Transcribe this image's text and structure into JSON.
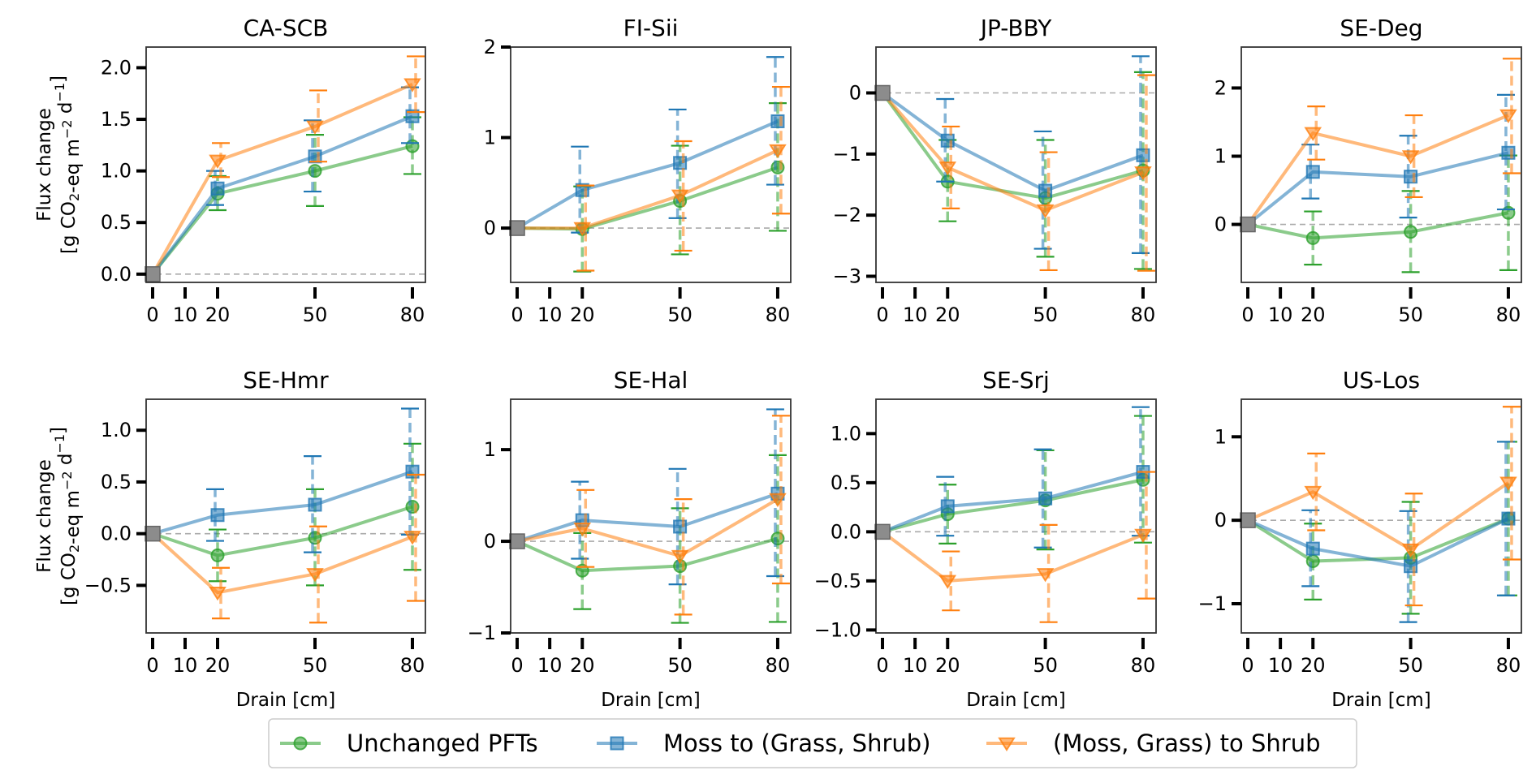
{
  "chart_data": {
    "type": "line",
    "layout": "2x4 grid of subplots with shared legend at bottom",
    "xlabel": "Drain [cm]",
    "ylabel_line1": "Flux change",
    "ylabel_line2": "[g CO2-eq m-2 d-1]",
    "x_ticks": [
      0,
      10,
      20,
      50,
      80
    ],
    "x_tick_labels": [
      "0",
      "10",
      "20",
      "50",
      "80"
    ],
    "x": [
      0,
      20,
      50,
      80
    ],
    "baseline": {
      "x": 0,
      "y": 0,
      "marker": "square",
      "color": "#8c8c8c"
    },
    "zero_line": {
      "style": "dashed",
      "color": "#aaaaaa"
    },
    "legend": {
      "placement": "bottom-center",
      "entries": [
        {
          "label": "Unchanged PFTs",
          "color": "#2ca02c",
          "marker": "circle"
        },
        {
          "label": "Moss to (Grass, Shrub)",
          "color": "#1f77b4",
          "marker": "square"
        },
        {
          "label": "(Moss, Grass) to Shrub",
          "color": "#ff7f0e",
          "marker": "triangle-down"
        }
      ]
    },
    "panels": [
      {
        "title": "CA-SCB",
        "ylim": [
          -0.08,
          2.2
        ],
        "yticks": [
          0.0,
          0.5,
          1.0,
          1.5,
          2.0
        ],
        "ytick_labels": [
          "0.0",
          "0.5",
          "1.0",
          "1.5",
          "2.0"
        ],
        "show_ylabel": true,
        "show_xlabel": false,
        "series": [
          {
            "name": "Unchanged PFTs",
            "y": [
              0,
              0.78,
              1.0,
              1.24
            ],
            "err_low": [
              0,
              0.62,
              0.66,
              0.97
            ],
            "err_high": [
              0,
              0.95,
              1.35,
              1.52
            ]
          },
          {
            "name": "Moss to (Grass, Shrub)",
            "y": [
              0,
              0.83,
              1.14,
              1.53
            ],
            "err_low": [
              0,
              0.67,
              0.8,
              1.27
            ],
            "err_high": [
              0,
              1.0,
              1.49,
              1.81
            ]
          },
          {
            "name": "(Moss, Grass) to Shrub",
            "y": [
              0,
              1.1,
              1.43,
              1.84
            ],
            "err_low": [
              0,
              0.94,
              1.09,
              1.57
            ],
            "err_high": [
              0,
              1.27,
              1.78,
              2.11
            ]
          }
        ]
      },
      {
        "title": "FI-Sii",
        "ylim": [
          -0.6,
          2.0
        ],
        "yticks": [
          0,
          1,
          2
        ],
        "ytick_labels": [
          "0",
          "1",
          "2"
        ],
        "show_ylabel": false,
        "show_xlabel": false,
        "series": [
          {
            "name": "Unchanged PFTs",
            "y": [
              0,
              -0.01,
              0.3,
              0.67
            ],
            "err_low": [
              0,
              -0.48,
              -0.29,
              -0.03
            ],
            "err_high": [
              0,
              0.46,
              0.91,
              1.38
            ]
          },
          {
            "name": "Moss to (Grass, Shrub)",
            "y": [
              0,
              0.42,
              0.72,
              1.18
            ],
            "err_low": [
              0,
              -0.05,
              0.11,
              0.48
            ],
            "err_high": [
              0,
              0.9,
              1.31,
              1.89
            ]
          },
          {
            "name": "(Moss, Grass) to Shrub",
            "y": [
              0,
              0.0,
              0.36,
              0.86
            ],
            "err_low": [
              0,
              -0.47,
              -0.25,
              0.16
            ],
            "err_high": [
              0,
              0.47,
              0.96,
              1.56
            ]
          }
        ]
      },
      {
        "title": "JP-BBY",
        "ylim": [
          -3.1,
          0.75
        ],
        "yticks": [
          -3,
          -2,
          -1,
          0
        ],
        "ytick_labels": [
          "−3",
          "−2",
          "−1",
          "0"
        ],
        "show_ylabel": false,
        "show_xlabel": false,
        "series": [
          {
            "name": "Unchanged PFTs",
            "y": [
              0,
              -1.45,
              -1.72,
              -1.27
            ],
            "err_low": [
              0,
              -2.1,
              -2.68,
              -2.88
            ],
            "err_high": [
              0,
              -0.77,
              -0.77,
              0.34
            ]
          },
          {
            "name": "Moss to (Grass, Shrub)",
            "y": [
              0,
              -0.78,
              -1.6,
              -1.02
            ],
            "err_low": [
              0,
              -1.45,
              -2.55,
              -2.62
            ],
            "err_high": [
              0,
              -0.1,
              -0.63,
              0.6
            ]
          },
          {
            "name": "(Moss, Grass) to Shrub",
            "y": [
              0,
              -1.22,
              -1.92,
              -1.3
            ],
            "err_low": [
              0,
              -1.89,
              -2.9,
              -2.91
            ],
            "err_high": [
              0,
              -0.55,
              -0.97,
              0.29
            ]
          }
        ]
      },
      {
        "title": "SE-Deg",
        "ylim": [
          -0.85,
          2.6
        ],
        "yticks": [
          0,
          1,
          2
        ],
        "ytick_labels": [
          "0",
          "1",
          "2"
        ],
        "show_ylabel": false,
        "show_xlabel": false,
        "series": [
          {
            "name": "Unchanged PFTs",
            "y": [
              0,
              -0.2,
              -0.11,
              0.17
            ],
            "err_low": [
              0,
              -0.59,
              -0.7,
              -0.67
            ],
            "err_high": [
              0,
              0.19,
              0.49,
              1.01
            ]
          },
          {
            "name": "Moss to (Grass, Shrub)",
            "y": [
              0,
              0.77,
              0.7,
              1.05
            ],
            "err_low": [
              0,
              0.38,
              0.1,
              0.22
            ],
            "err_high": [
              0,
              1.17,
              1.3,
              1.9
            ]
          },
          {
            "name": "(Moss, Grass) to Shrub",
            "y": [
              0,
              1.34,
              1.0,
              1.6
            ],
            "err_low": [
              0,
              0.95,
              0.4,
              0.75
            ],
            "err_high": [
              0,
              1.73,
              1.6,
              2.43
            ]
          }
        ]
      },
      {
        "title": "SE-Hmr",
        "ylim": [
          -0.96,
          1.3
        ],
        "yticks": [
          -0.5,
          0.0,
          0.5,
          1.0
        ],
        "ytick_labels": [
          "−0.5",
          "0.0",
          "0.5",
          "1.0"
        ],
        "show_ylabel": true,
        "show_xlabel": true,
        "series": [
          {
            "name": "Unchanged PFTs",
            "y": [
              0,
              -0.21,
              -0.04,
              0.26
            ],
            "err_low": [
              0,
              -0.46,
              -0.5,
              -0.35
            ],
            "err_high": [
              0,
              0.04,
              0.43,
              0.87
            ]
          },
          {
            "name": "Moss to (Grass, Shrub)",
            "y": [
              0,
              0.18,
              0.28,
              0.6
            ],
            "err_low": [
              0,
              -0.07,
              -0.18,
              -0.01
            ],
            "err_high": [
              0,
              0.43,
              0.75,
              1.21
            ]
          },
          {
            "name": "(Moss, Grass) to Shrub",
            "y": [
              0,
              -0.57,
              -0.39,
              -0.03
            ],
            "err_low": [
              0,
              -0.82,
              -0.86,
              -0.65
            ],
            "err_high": [
              0,
              -0.33,
              0.07,
              0.57
            ]
          }
        ]
      },
      {
        "title": "SE-Hal",
        "ylim": [
          -1.0,
          1.55
        ],
        "yticks": [
          -1,
          0,
          1
        ],
        "ytick_labels": [
          "−1",
          "0",
          "1"
        ],
        "show_ylabel": false,
        "show_xlabel": true,
        "series": [
          {
            "name": "Unchanged PFTs",
            "y": [
              0,
              -0.32,
              -0.27,
              0.03
            ],
            "err_low": [
              0,
              -0.74,
              -0.89,
              -0.88
            ],
            "err_high": [
              0,
              0.09,
              0.36,
              0.94
            ]
          },
          {
            "name": "Moss to (Grass, Shrub)",
            "y": [
              0,
              0.23,
              0.16,
              0.52
            ],
            "err_low": [
              0,
              -0.19,
              -0.47,
              -0.38
            ],
            "err_high": [
              0,
              0.65,
              0.79,
              1.44
            ]
          },
          {
            "name": "(Moss, Grass) to Shrub",
            "y": [
              0,
              0.14,
              -0.16,
              0.46
            ],
            "err_low": [
              0,
              -0.28,
              -0.8,
              -0.46
            ],
            "err_high": [
              0,
              0.56,
              0.46,
              1.37
            ]
          }
        ]
      },
      {
        "title": "SE-Srj",
        "ylim": [
          -1.03,
          1.35
        ],
        "yticks": [
          -1.0,
          -0.5,
          0.0,
          0.5,
          1.0
        ],
        "ytick_labels": [
          "−1.0",
          "−0.5",
          "0.0",
          "0.5",
          "1.0"
        ],
        "show_ylabel": false,
        "show_xlabel": true,
        "series": [
          {
            "name": "Unchanged PFTs",
            "y": [
              0,
              0.18,
              0.32,
              0.53
            ],
            "err_low": [
              0,
              -0.12,
              -0.18,
              -0.11
            ],
            "err_high": [
              0,
              0.48,
              0.83,
              1.18
            ]
          },
          {
            "name": "Moss to (Grass, Shrub)",
            "y": [
              0,
              0.26,
              0.34,
              0.61
            ],
            "err_low": [
              0,
              -0.04,
              -0.16,
              -0.04
            ],
            "err_high": [
              0,
              0.56,
              0.84,
              1.27
            ]
          },
          {
            "name": "(Moss, Grass) to Shrub",
            "y": [
              0,
              -0.5,
              -0.43,
              -0.03
            ],
            "err_low": [
              0,
              -0.8,
              -0.92,
              -0.68
            ],
            "err_high": [
              0,
              -0.2,
              0.07,
              0.61
            ]
          }
        ]
      },
      {
        "title": "US-Los",
        "ylim": [
          -1.35,
          1.45
        ],
        "yticks": [
          -1,
          0,
          1
        ],
        "ytick_labels": [
          "−1",
          "0",
          "1"
        ],
        "show_ylabel": false,
        "show_xlabel": true,
        "series": [
          {
            "name": "Unchanged PFTs",
            "y": [
              0,
              -0.49,
              -0.45,
              0.02
            ],
            "err_low": [
              0,
              -0.95,
              -1.12,
              -0.9
            ],
            "err_high": [
              0,
              -0.04,
              0.22,
              0.94
            ]
          },
          {
            "name": "Moss to (Grass, Shrub)",
            "y": [
              0,
              -0.34,
              -0.55,
              0.02
            ],
            "err_low": [
              0,
              -0.79,
              -1.22,
              -0.9
            ],
            "err_high": [
              0,
              0.12,
              0.11,
              0.94
            ]
          },
          {
            "name": "(Moss, Grass) to Shrub",
            "y": [
              0,
              0.34,
              -0.35,
              0.45
            ],
            "err_low": [
              0,
              -0.12,
              -1.02,
              -0.47
            ],
            "err_high": [
              0,
              0.8,
              0.32,
              1.36
            ]
          }
        ]
      }
    ]
  }
}
